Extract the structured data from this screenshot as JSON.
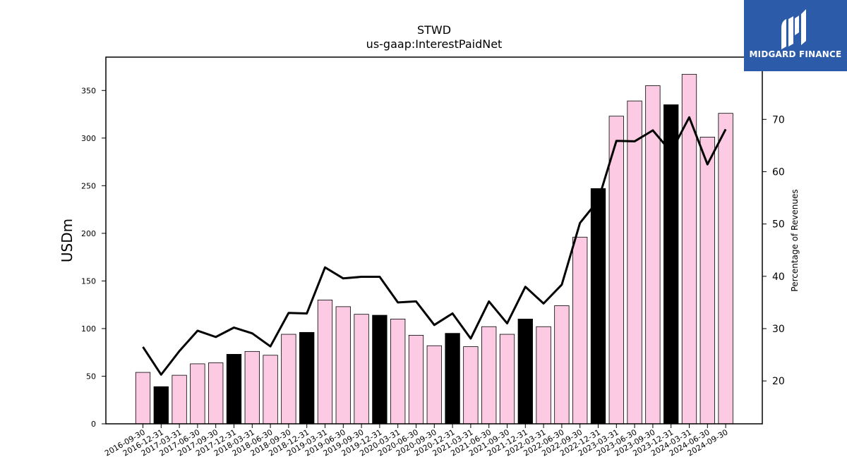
{
  "logo": {
    "text": "MIDGARD FINANCE",
    "background": "#2b5ba9"
  },
  "chart_data": {
    "type": "bar",
    "title": "STWD",
    "subtitle": "us-gaap:InterestPaidNet",
    "ylabel": "USDm",
    "y2label": "Percentage of Revenues",
    "ylim": [
      0,
      385
    ],
    "y2lim": [
      11.8,
      81.9
    ],
    "yticks": [
      0,
      50,
      100,
      150,
      200,
      250,
      300,
      350
    ],
    "y2ticks": [
      20,
      30,
      40,
      50,
      60,
      70
    ],
    "categories": [
      "2016-09-30",
      "2016-12-31",
      "2017-03-31",
      "2017-06-30",
      "2017-09-30",
      "2017-12-31",
      "2018-03-31",
      "2018-06-30",
      "2018-09-30",
      "2018-12-31",
      "2019-03-31",
      "2019-06-30",
      "2019-09-30",
      "2019-12-31",
      "2020-03-31",
      "2020-06-30",
      "2020-09-30",
      "2020-12-31",
      "2021-03-31",
      "2021-06-30",
      "2021-09-30",
      "2021-12-31",
      "2022-03-31",
      "2022-06-30",
      "2022-09-30",
      "2022-12-31",
      "2023-03-31",
      "2023-06-30",
      "2023-09-30",
      "2023-12-31",
      "2024-03-31",
      "2024-06-30",
      "2024-09-30"
    ],
    "series": [
      {
        "type": "bar",
        "axis": "left",
        "values": [
          54,
          39,
          51,
          63,
          64,
          73,
          76,
          72,
          94,
          96,
          130,
          123,
          115,
          114,
          110,
          93,
          82,
          95,
          81,
          102,
          94,
          110,
          102,
          124,
          196,
          247,
          323,
          339,
          355,
          335,
          367,
          301,
          326
        ],
        "colors": [
          "#fccbe3",
          "#000000",
          "#fccbe3",
          "#fccbe3",
          "#fccbe3",
          "#000000",
          "#fccbe3",
          "#fccbe3",
          "#fccbe3",
          "#000000",
          "#fccbe3",
          "#fccbe3",
          "#fccbe3",
          "#000000",
          "#fccbe3",
          "#fccbe3",
          "#fccbe3",
          "#000000",
          "#fccbe3",
          "#fccbe3",
          "#fccbe3",
          "#000000",
          "#fccbe3",
          "#fccbe3",
          "#fccbe3",
          "#000000",
          "#fccbe3",
          "#fccbe3",
          "#fccbe3",
          "#000000",
          "#fccbe3",
          "#fccbe3",
          "#fccbe3"
        ]
      },
      {
        "type": "line",
        "axis": "right",
        "color": "#000000",
        "values": [
          26.5,
          21.2,
          25.7,
          29.6,
          28.4,
          30.2,
          29.1,
          26.6,
          33.0,
          32.9,
          41.7,
          39.6,
          39.9,
          39.9,
          35.0,
          35.2,
          30.7,
          32.9,
          28.1,
          35.2,
          31.0,
          38.0,
          34.8,
          38.4,
          50.2,
          54.5,
          65.9,
          65.8,
          67.9,
          63.8,
          70.4,
          61.4,
          68.1
        ]
      }
    ],
    "grid": false,
    "legend": "none"
  }
}
